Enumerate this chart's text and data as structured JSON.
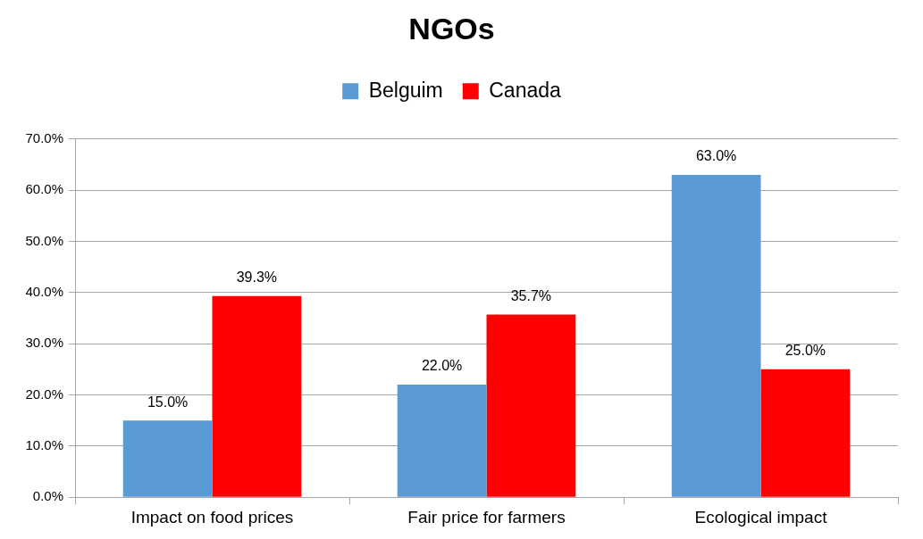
{
  "chart_data": {
    "type": "bar",
    "title": "NGOs",
    "categories": [
      "Impact on food prices",
      "Fair price for farmers",
      "Ecological impact"
    ],
    "series": [
      {
        "name": "Belguim",
        "color": "#5b9bd5",
        "values": [
          15.0,
          22.0,
          63.0
        ],
        "value_labels": [
          "15.0%",
          "22.0%",
          "63.0%"
        ]
      },
      {
        "name": "Canada",
        "color": "#ff0000",
        "values": [
          39.3,
          35.7,
          25.0
        ],
        "value_labels": [
          "39.3%",
          "35.7%",
          "25.0%"
        ]
      }
    ],
    "ylim": [
      0,
      70
    ],
    "yticks": [
      {
        "value": 0,
        "label": "0.0%"
      },
      {
        "value": 10,
        "label": "10.0%"
      },
      {
        "value": 20,
        "label": "20.0%"
      },
      {
        "value": 30,
        "label": "30.0%"
      },
      {
        "value": 40,
        "label": "40.0%"
      },
      {
        "value": 50,
        "label": "50.0%"
      },
      {
        "value": 60,
        "label": "60.0%"
      },
      {
        "value": 70,
        "label": "70.0%"
      }
    ],
    "grid": "y",
    "legend": "top"
  }
}
